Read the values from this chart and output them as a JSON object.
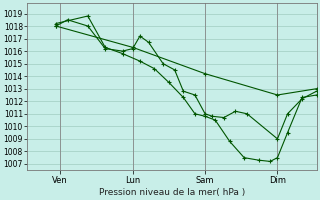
{
  "background_color": "#c8eee8",
  "grid_color": "#a0ccc0",
  "line_color": "#005500",
  "ylabel_text": "Pression niveau de la mer( hPa )",
  "ylim": [
    1006.5,
    1019.8
  ],
  "yticks": [
    1007,
    1008,
    1009,
    1010,
    1011,
    1012,
    1013,
    1014,
    1015,
    1016,
    1017,
    1018,
    1019
  ],
  "xlim": [
    0,
    1.0
  ],
  "xtick_positions": [
    0.115,
    0.365,
    0.615,
    0.865
  ],
  "xtick_labels": [
    "Ven",
    "Lun",
    "Sam",
    "Dim"
  ],
  "vline_color": "#888888",
  "series": [
    {
      "x": [
        0.1,
        0.14,
        0.21,
        0.27,
        0.33,
        0.365,
        0.39,
        0.42,
        0.47,
        0.51,
        0.54,
        0.58,
        0.615,
        0.64,
        0.68,
        0.72,
        0.76,
        0.865,
        0.9,
        0.95,
        1.0
      ],
      "y": [
        1018.0,
        1018.5,
        1018.0,
        1016.2,
        1016.0,
        1016.2,
        1017.2,
        1016.7,
        1015.0,
        1014.5,
        1012.8,
        1012.5,
        1011.0,
        1010.8,
        1010.7,
        1011.2,
        1011.0,
        1009.0,
        1011.0,
        1012.2,
        1012.8
      ]
    },
    {
      "x": [
        0.1,
        0.21,
        0.27,
        0.33,
        0.39,
        0.44,
        0.49,
        0.54,
        0.58,
        0.615,
        0.65,
        0.7,
        0.75,
        0.8,
        0.84,
        0.865,
        0.9,
        0.95,
        1.0
      ],
      "y": [
        1018.2,
        1018.8,
        1016.3,
        1015.8,
        1015.2,
        1014.6,
        1013.5,
        1012.3,
        1011.0,
        1010.8,
        1010.5,
        1008.8,
        1007.5,
        1007.3,
        1007.2,
        1007.5,
        1009.5,
        1012.3,
        1012.5
      ]
    },
    {
      "x": [
        0.1,
        0.365,
        0.615,
        0.865,
        1.0
      ],
      "y": [
        1018.0,
        1016.3,
        1014.2,
        1012.5,
        1013.0
      ]
    }
  ]
}
